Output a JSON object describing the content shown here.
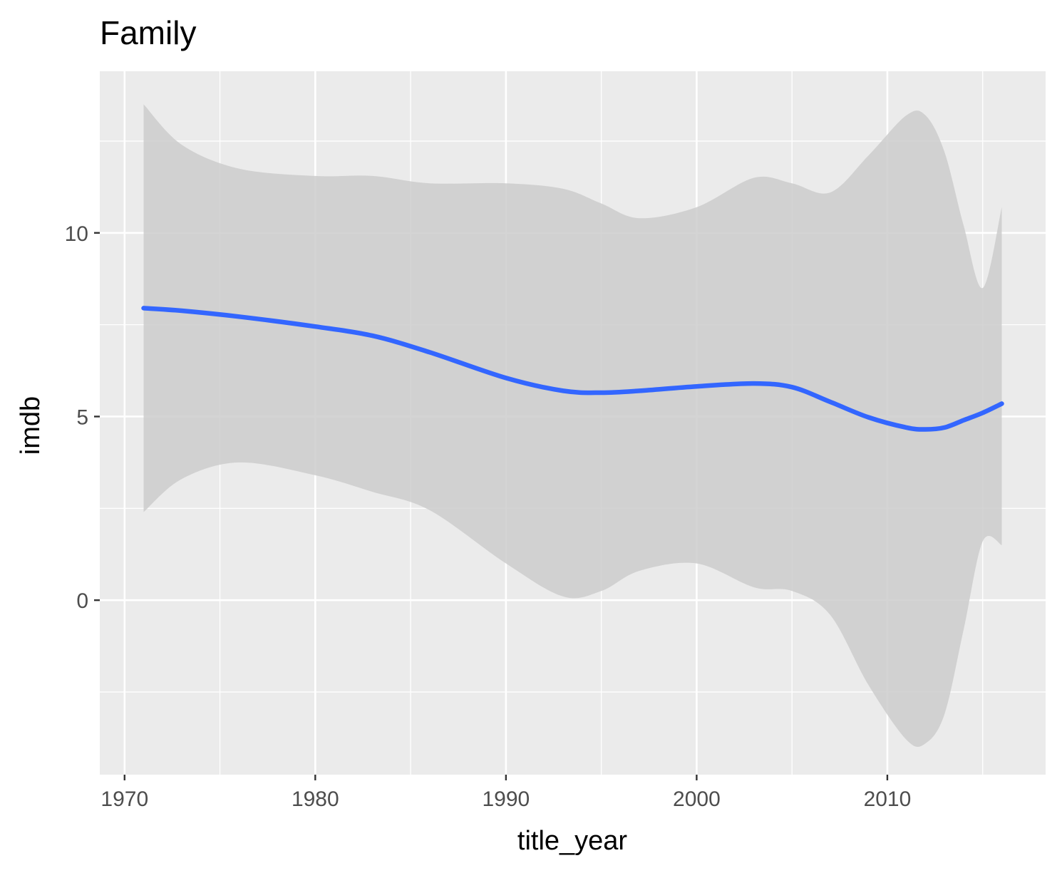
{
  "chart_data": {
    "type": "line",
    "title": "Family",
    "xlabel": "title_year",
    "ylabel": "imdb",
    "xlim": [
      1968.7,
      2018.3
    ],
    "ylim": [
      -4.75,
      14.4
    ],
    "x_ticks": [
      1970,
      1980,
      1990,
      2000,
      2010
    ],
    "x_tick_labels": [
      "1970",
      "1980",
      "1990",
      "2000",
      "2010"
    ],
    "x_minor_ticks": [
      1975,
      1985,
      1995,
      2005,
      2015
    ],
    "y_ticks": [
      0,
      5,
      10
    ],
    "y_tick_labels": [
      "0",
      "5",
      "10"
    ],
    "y_minor_ticks": [
      -2.5,
      2.5,
      7.5,
      12.5
    ],
    "grid": true,
    "colors": {
      "panel": "#ebebeb",
      "grid": "#ffffff",
      "ribbon": "#cccccc",
      "line": "#3366ff",
      "tick": "#333333"
    },
    "series": [
      {
        "x": [
          1971,
          1973,
          1976,
          1980,
          1983,
          1986,
          1990,
          1993,
          1995,
          1997,
          2000,
          2003,
          2005,
          2007,
          2009,
          2011,
          2012,
          2013,
          2014,
          2015,
          2016
        ],
        "y": [
          7.95,
          7.88,
          7.72,
          7.45,
          7.2,
          6.75,
          6.05,
          5.7,
          5.65,
          5.7,
          5.82,
          5.9,
          5.8,
          5.4,
          4.98,
          4.7,
          4.65,
          4.7,
          4.9,
          5.1,
          5.35
        ],
        "ymin": [
          2.4,
          3.3,
          3.75,
          3.4,
          2.95,
          2.45,
          1.0,
          0.1,
          0.25,
          0.8,
          1.0,
          0.35,
          0.25,
          -0.4,
          -2.3,
          -3.8,
          -3.9,
          -3.1,
          -0.8,
          1.6,
          1.5
        ],
        "ymax": [
          13.5,
          12.4,
          11.75,
          11.55,
          11.55,
          11.35,
          11.35,
          11.2,
          10.8,
          10.4,
          10.7,
          11.5,
          11.35,
          11.1,
          12.1,
          13.2,
          13.2,
          12.2,
          10.2,
          8.5,
          10.7
        ]
      }
    ]
  }
}
